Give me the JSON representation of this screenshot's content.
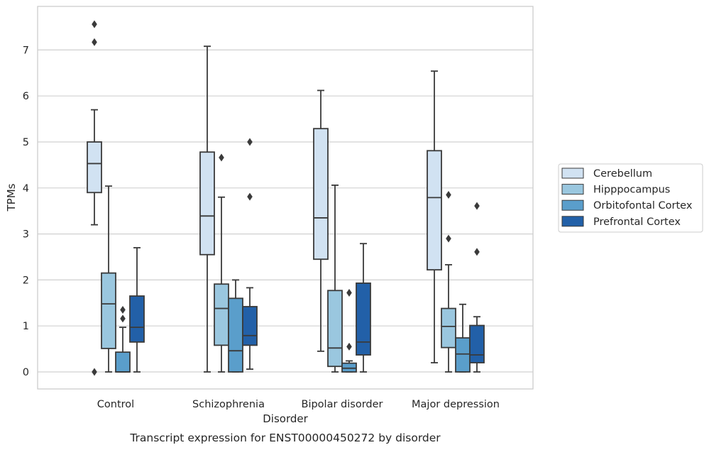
{
  "chart_data": {
    "type": "box",
    "title": "Transcript expression for ENST00000450272 by disorder",
    "xlabel": "Disorder",
    "ylabel": "TPMs",
    "categories": [
      "Control",
      "Schizophrenia",
      "Bipolar disorder",
      "Major depression"
    ],
    "ylim": [
      -0.35,
      7.95
    ],
    "yticks": [
      0,
      1,
      2,
      3,
      4,
      5,
      6,
      7
    ],
    "grid": "horizontal",
    "legend_position": "right",
    "series": [
      {
        "name": "Cerebellum",
        "color": "#d1e2f2",
        "boxes": [
          {
            "whislo": 3.2,
            "q1": 3.9,
            "med": 4.53,
            "q3": 5.0,
            "whishi": 5.7,
            "fliers": [
              7.17,
              7.56,
              0.0
            ]
          },
          {
            "whislo": 0.0,
            "q1": 2.55,
            "med": 3.39,
            "q3": 4.78,
            "whishi": 7.08,
            "fliers": []
          },
          {
            "whislo": 0.45,
            "q1": 2.45,
            "med": 3.35,
            "q3": 5.29,
            "whishi": 6.12,
            "fliers": []
          },
          {
            "whislo": 0.2,
            "q1": 2.22,
            "med": 3.79,
            "q3": 4.81,
            "whishi": 6.54,
            "fliers": []
          }
        ]
      },
      {
        "name": "Hipppocampus",
        "color": "#9ac7df",
        "boxes": [
          {
            "whislo": 0.0,
            "q1": 0.51,
            "med": 1.48,
            "q3": 2.15,
            "whishi": 4.04,
            "fliers": []
          },
          {
            "whislo": 0.0,
            "q1": 0.58,
            "med": 1.38,
            "q3": 1.91,
            "whishi": 3.8,
            "fliers": [
              4.66
            ]
          },
          {
            "whislo": 0.0,
            "q1": 0.12,
            "med": 0.52,
            "q3": 1.77,
            "whishi": 4.06,
            "fliers": []
          },
          {
            "whislo": 0.0,
            "q1": 0.53,
            "med": 0.99,
            "q3": 1.38,
            "whishi": 2.33,
            "fliers": [
              2.9,
              3.85
            ]
          }
        ]
      },
      {
        "name": "Orbitofontal Cortex",
        "color": "#5a9ecb",
        "boxes": [
          {
            "whislo": 0.0,
            "q1": 0.0,
            "med": 0.0,
            "q3": 0.43,
            "whishi": 0.97,
            "fliers": [
              1.16,
              1.35
            ]
          },
          {
            "whislo": 0.0,
            "q1": 0.0,
            "med": 0.46,
            "q3": 1.6,
            "whishi": 2.0,
            "fliers": []
          },
          {
            "whislo": 0.0,
            "q1": 0.0,
            "med": 0.08,
            "q3": 0.19,
            "whishi": 0.24,
            "fliers": [
              0.55,
              1.72
            ]
          },
          {
            "whislo": 0.0,
            "q1": 0.0,
            "med": 0.39,
            "q3": 0.74,
            "whishi": 1.47,
            "fliers": []
          }
        ]
      },
      {
        "name": "Prefrontal Cortex",
        "color": "#2260a8",
        "boxes": [
          {
            "whislo": 0.0,
            "q1": 0.65,
            "med": 0.97,
            "q3": 1.65,
            "whishi": 2.7,
            "fliers": []
          },
          {
            "whislo": 0.06,
            "q1": 0.58,
            "med": 0.79,
            "q3": 1.42,
            "whishi": 1.83,
            "fliers": [
              3.81,
              5.0
            ]
          },
          {
            "whislo": 0.0,
            "q1": 0.37,
            "med": 0.65,
            "q3": 1.93,
            "whishi": 2.79,
            "fliers": []
          },
          {
            "whislo": 0.0,
            "q1": 0.2,
            "med": 0.37,
            "q3": 1.01,
            "whishi": 1.2,
            "fliers": [
              2.61,
              3.61
            ]
          }
        ]
      }
    ]
  }
}
